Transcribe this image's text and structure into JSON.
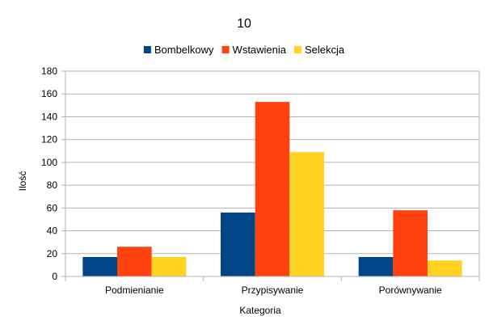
{
  "chart_data": {
    "type": "bar",
    "title": "10",
    "xlabel": "Kategoria",
    "ylabel": "Ilość",
    "categories": [
      "Podmienianie",
      "Przypisywanie",
      "Porównywanie"
    ],
    "series": [
      {
        "name": "Bombelkowy",
        "color": "#004586",
        "values": [
          17,
          56,
          17
        ]
      },
      {
        "name": "Wstawienia",
        "color": "#ff420e",
        "values": [
          26,
          153,
          58
        ]
      },
      {
        "name": "Selekcja",
        "color": "#ffd320",
        "values": [
          17,
          109,
          14
        ]
      }
    ],
    "ylim": [
      0,
      180
    ],
    "yticks": [
      0,
      20,
      40,
      60,
      80,
      100,
      120,
      140,
      160,
      180
    ],
    "grid": true,
    "legend_position": "top"
  }
}
